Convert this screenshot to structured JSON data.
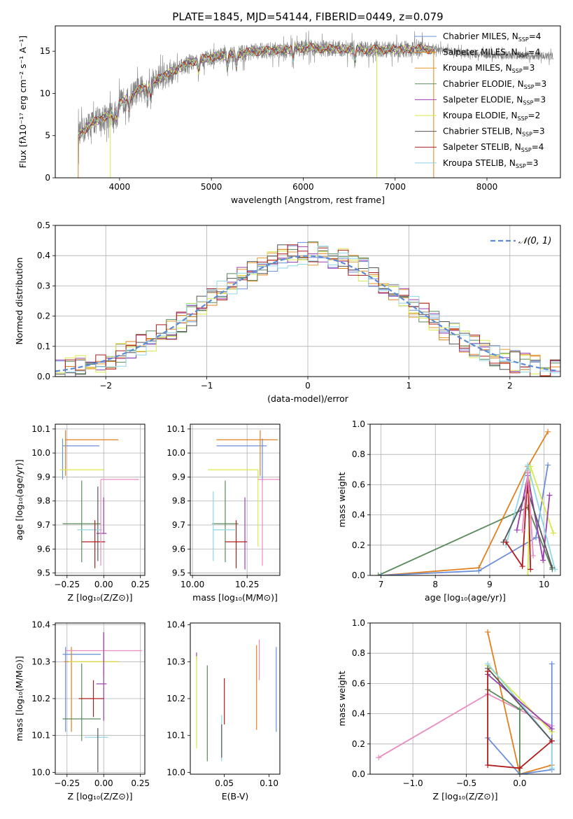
{
  "title": "PLATE=1845, MJD=54144, FIBERID=0449, z=0.079",
  "colors": {
    "Chabrier MILES": "#6a8fd8",
    "Salpeter MILES": "#e0801e",
    "Kroupa MILES": "#df9a2b",
    "Chabrier ELODIE": "#5a8a5a",
    "Salpeter ELODIE": "#9a3fae",
    "Kroupa ELODIE": "#d8e84a",
    "Chabrier STELIB": "#555555",
    "Salpeter STELIB": "#b01c1c",
    "Kroupa STELIB": "#8ed6e8",
    "extra_pink": "#e98cc0",
    "data_grey": "#808080",
    "normal_curve": "#5b8bd8"
  },
  "chart_data": [
    {
      "id": "spectrum",
      "type": "line",
      "xlabel": "wavelength [Angstrom, rest frame]",
      "ylabel": "Flux [fλ10⁻¹⁷ erg cm⁻² s⁻¹ A⁻¹]",
      "xlim": [
        3300,
        8800
      ],
      "ylim": [
        0,
        18
      ],
      "xticks": [
        4000,
        5000,
        6000,
        7000,
        8000
      ],
      "yticks": [
        0,
        5,
        10,
        15
      ],
      "grid": false,
      "legend_position": "right",
      "legend": [
        {
          "name": "Chabrier MILES",
          "nssp": "4"
        },
        {
          "name": "Salpeter MILES",
          "nssp": "4"
        },
        {
          "name": "Kroupa MILES",
          "nssp": "3"
        },
        {
          "name": "Chabrier ELODIE",
          "nssp": "3"
        },
        {
          "name": "Salpeter ELODIE",
          "nssp": "3"
        },
        {
          "name": "Kroupa ELODIE",
          "nssp": "2"
        },
        {
          "name": "Chabrier STELIB",
          "nssp": "3"
        },
        {
          "name": "Salpeter STELIB",
          "nssp": "4"
        },
        {
          "name": "Kroupa STELIB",
          "nssp": "3"
        }
      ],
      "continuum": [
        [
          3550,
          5.0
        ],
        [
          3700,
          6.5
        ],
        [
          3900,
          7.5
        ],
        [
          4000,
          8.8
        ],
        [
          4200,
          10.3
        ],
        [
          4500,
          12.2
        ],
        [
          4800,
          13.8
        ],
        [
          5000,
          14.3
        ],
        [
          5200,
          14.6
        ],
        [
          5500,
          15.0
        ],
        [
          5800,
          15.2
        ],
        [
          6000,
          15.4
        ],
        [
          6300,
          15.3
        ],
        [
          6600,
          15.2
        ],
        [
          7000,
          15.2
        ],
        [
          7300,
          15.3
        ],
        [
          7600,
          15.0
        ],
        [
          7800,
          14.7
        ],
        [
          8000,
          14.6
        ],
        [
          8400,
          14.5
        ],
        [
          8700,
          14.4
        ]
      ]
    },
    {
      "id": "residuals",
      "type": "bar",
      "xlabel": "(data-model)/error",
      "ylabel": "Normed distribution",
      "xlim": [
        -2.5,
        2.5
      ],
      "ylim": [
        0,
        0.5
      ],
      "xticks": [
        -2,
        -1,
        0,
        1,
        2
      ],
      "yticks": [
        0.0,
        0.1,
        0.2,
        0.3,
        0.4,
        0.5
      ],
      "grid": true,
      "legend": "𝒩(0, 1)",
      "legend_position": "top-right",
      "bin_width": 0.1,
      "bin_start": -2.5
    },
    {
      "id": "age_vs_Z",
      "type": "scatter",
      "xlabel": "Z [log₁₀(Z/Z⊙)]",
      "ylabel": "age  [log₁₀(age/yr)]",
      "xlim": [
        -0.33,
        0.28
      ],
      "ylim": [
        9.49,
        10.12
      ],
      "xticks": [
        -0.25,
        0.0,
        0.25
      ],
      "yticks": [
        9.5,
        9.6,
        9.7,
        9.8,
        9.9,
        10.0,
        10.1
      ],
      "grid": true,
      "errorbars": [
        {
          "model": "Chabrier MILES",
          "x": -0.28,
          "xerr": [
            0.0,
            0.25
          ],
          "y": 10.03,
          "yerr": [
            0.14,
            0.03
          ]
        },
        {
          "model": "Salpeter MILES",
          "x": -0.26,
          "xerr": [
            0.0,
            0.36
          ],
          "y": 10.055,
          "yerr": [
            0.15,
            0.04
          ]
        },
        {
          "model": "Kroupa ELODIE",
          "x": -0.3,
          "xerr": [
            0.0,
            0.3
          ],
          "y": 9.93,
          "yerr": [
            0.0,
            0.0
          ]
        },
        {
          "model": "Salpeter ELODIE",
          "x": 0.0,
          "xerr": [
            0.05,
            0.02
          ],
          "y": 9.665,
          "yerr": [
            0.0,
            0.15
          ]
        },
        {
          "model": "Chabrier ELODIE",
          "x": -0.15,
          "xerr": [
            0.13,
            0.13
          ],
          "y": 9.705,
          "yerr": [
            0.16,
            0.18
          ]
        },
        {
          "model": "Chabrier STELIB",
          "x": -0.04,
          "xerr": [
            0.0,
            0.0
          ],
          "y": 9.7,
          "yerr": [
            0.15,
            0.16
          ]
        },
        {
          "model": "Kroupa STELIB",
          "x": -0.1,
          "xerr": [
            0.08,
            0.09
          ],
          "y": 9.68,
          "yerr": [
            0.0,
            0.0
          ]
        },
        {
          "model": "Salpeter STELIB",
          "x": -0.06,
          "xerr": [
            0.09,
            0.07
          ],
          "y": 9.63,
          "yerr": [
            0.11,
            0.09
          ]
        },
        {
          "model": "extra_pink",
          "x": -0.02,
          "xerr": [
            0.0,
            0.26
          ],
          "y": 9.89,
          "yerr": [
            0.36,
            0.0
          ]
        }
      ]
    },
    {
      "id": "age_vs_mass",
      "type": "scatter",
      "xlabel": "mass [log₁₀(M/M⊙)]",
      "ylabel": "",
      "xlim": [
        9.99,
        10.4
      ],
      "ylim": [
        9.49,
        10.12
      ],
      "xticks": [
        10.0,
        10.25
      ],
      "yticks": [
        9.5,
        9.6,
        9.7,
        9.8,
        9.9,
        10.0,
        10.1
      ],
      "grid": true,
      "errorbars": [
        {
          "model": "Chabrier MILES",
          "x": 10.32,
          "xerr": [
            0.21,
            0.02
          ],
          "y": 10.03,
          "yerr": [
            0.15,
            0.03
          ]
        },
        {
          "model": "Salpeter MILES",
          "x": 10.31,
          "xerr": [
            0.2,
            0.08
          ],
          "y": 10.055,
          "yerr": [
            0.15,
            0.04
          ]
        },
        {
          "model": "Kroupa ELODIE",
          "x": 10.3,
          "xerr": [
            0.23,
            0.0
          ],
          "y": 9.93,
          "yerr": [
            0.32,
            0.0
          ]
        },
        {
          "model": "extra_pink",
          "x": 10.32,
          "xerr": [
            0.02,
            0.08
          ],
          "y": 9.89,
          "yerr": [
            0.36,
            0.0
          ]
        },
        {
          "model": "Chabrier ELODIE",
          "x": 10.15,
          "xerr": [
            0.06,
            0.06
          ],
          "y": 9.705,
          "yerr": [
            0.16,
            0.18
          ]
        },
        {
          "model": "Salpeter ELODIE",
          "x": 10.24,
          "xerr": [
            0.0,
            0.0
          ],
          "y": 9.665,
          "yerr": [
            0.15,
            0.15
          ]
        },
        {
          "model": "Kroupa STELIB",
          "x": 10.095,
          "xerr": [
            0.0,
            0.1
          ],
          "y": 9.68,
          "yerr": [
            0.13,
            0.16
          ]
        },
        {
          "model": "Salpeter STELIB",
          "x": 10.2,
          "xerr": [
            0.05,
            0.05
          ],
          "y": 9.63,
          "yerr": [
            0.11,
            0.09
          ]
        }
      ]
    },
    {
      "id": "massweight_vs_age",
      "type": "line",
      "xlabel": "age  [log₁₀(age/yr)]",
      "ylabel": "mass weight",
      "xlim": [
        6.8,
        10.3
      ],
      "ylim": [
        0.0,
        1.0
      ],
      "xticks": [
        7,
        8,
        9,
        10
      ],
      "yticks": [
        0.0,
        0.2,
        0.4,
        0.6,
        0.8,
        1.0
      ],
      "grid": true,
      "series": [
        {
          "model": "Chabrier ELODIE",
          "x": [
            6.95,
            9.7,
            10.15
          ],
          "y": [
            0.0,
            0.45,
            0.04
          ]
        },
        {
          "model": "Salpeter MILES",
          "x": [
            7.0,
            8.8,
            9.7,
            10.07
          ],
          "y": [
            0.0,
            0.05,
            0.72,
            0.95
          ]
        },
        {
          "model": "Chabrier MILES",
          "x": [
            7.0,
            8.8,
            9.85,
            10.07
          ],
          "y": [
            0.0,
            0.03,
            0.25,
            0.73
          ]
        },
        {
          "model": "Kroupa ELODIE",
          "x": [
            9.7,
            9.75,
            10.17
          ],
          "y": [
            0.0,
            0.72,
            0.28
          ]
        },
        {
          "model": "Salpeter ELODIE",
          "x": [
            9.5,
            9.7,
            9.98,
            10.1
          ],
          "y": [
            0.3,
            0.66,
            0.1,
            0.53
          ]
        },
        {
          "model": "Kroupa STELIB",
          "x": [
            9.3,
            9.7,
            10.2
          ],
          "y": [
            0.2,
            0.73,
            0.04
          ]
        },
        {
          "model": "Chabrier STELIB",
          "x": [
            9.25,
            9.7,
            10.15
          ],
          "y": [
            0.22,
            0.56,
            0.05
          ]
        },
        {
          "model": "Salpeter STELIB",
          "x": [
            9.3,
            9.6,
            9.7,
            9.75
          ],
          "y": [
            0.22,
            0.06,
            0.68,
            0.04
          ]
        },
        {
          "model": "extra_pink",
          "x": [
            9.6,
            9.7,
            9.8
          ],
          "y": [
            0.3,
            0.68,
            0.13
          ]
        }
      ]
    },
    {
      "id": "mass_vs_Z",
      "type": "scatter",
      "xlabel": "Z [log₁₀(Z/Z⊙)]",
      "ylabel": "mass [log₁₀(M/M⊙)]",
      "xlim": [
        -0.33,
        0.28
      ],
      "ylim": [
        9.995,
        10.405
      ],
      "xticks": [
        -0.25,
        0.0,
        0.25
      ],
      "yticks": [
        10.0,
        10.1,
        10.2,
        10.3,
        10.4
      ],
      "grid": true,
      "errorbars": [
        {
          "model": "Chabrier MILES",
          "x": -0.26,
          "xerr": [
            0.02,
            0.24
          ],
          "y": 10.32,
          "yerr": [
            0.21,
            0.02
          ]
        },
        {
          "model": "Salpeter MILES",
          "x": -0.22,
          "xerr": [
            0.05,
            0.32
          ],
          "y": 10.3,
          "yerr": [
            0.19,
            0.04
          ]
        },
        {
          "model": "Kroupa ELODIE",
          "x": -0.2,
          "xerr": [
            0.04,
            0.3
          ],
          "y": 10.3,
          "yerr": [
            0.0,
            0.0
          ]
        },
        {
          "model": "extra_pink",
          "x": 0.0,
          "xerr": [
            0.26,
            0.26
          ],
          "y": 10.33,
          "yerr": [
            0.07,
            0.05
          ]
        },
        {
          "model": "Salpeter ELODIE",
          "x": 0.0,
          "xerr": [
            0.05,
            0.02
          ],
          "y": 10.24,
          "yerr": [
            0.1,
            0.14
          ]
        },
        {
          "model": "Chabrier ELODIE",
          "x": -0.15,
          "xerr": [
            0.13,
            0.13
          ],
          "y": 10.145,
          "yerr": [
            0.06,
            0.15
          ]
        },
        {
          "model": "Salpeter STELIB",
          "x": -0.07,
          "xerr": [
            0.1,
            0.07
          ],
          "y": 10.2,
          "yerr": [
            0.05,
            0.05
          ]
        },
        {
          "model": "Kroupa STELIB",
          "x": -0.05,
          "xerr": [
            0.08,
            0.08
          ],
          "y": 10.095,
          "yerr": [
            0.0,
            0.0
          ]
        },
        {
          "model": "Chabrier STELIB",
          "x": -0.04,
          "xerr": [
            0.0,
            0.0
          ],
          "y": 10.12,
          "yerr": [
            0.12,
            0.0
          ]
        }
      ]
    },
    {
      "id": "mass_vs_EBV",
      "type": "scatter",
      "xlabel": "E(B-V)",
      "ylabel": "",
      "xlim": [
        0.012,
        0.112
      ],
      "ylim": [
        9.995,
        10.405
      ],
      "xticks": [
        0.05,
        0.1
      ],
      "yticks": [
        10.0,
        10.1,
        10.2,
        10.3,
        10.4
      ],
      "grid": false,
      "errorbars": [
        {
          "model": "Salpeter ELODIE",
          "x": 0.019,
          "yrange": [
            10.305,
            10.325
          ]
        },
        {
          "model": "Kroupa ELODIE",
          "x": 0.019,
          "yrange": [
            10.065,
            10.315
          ]
        },
        {
          "model": "Chabrier ELODIE",
          "x": 0.031,
          "yrange": [
            10.03,
            10.29
          ]
        },
        {
          "model": "Kroupa STELIB",
          "x": 0.047,
          "yrange": [
            10.03,
            10.155
          ]
        },
        {
          "model": "Chabrier STELIB",
          "x": 0.047,
          "yrange": [
            10.04,
            10.13
          ]
        },
        {
          "model": "Salpeter STELIB",
          "x": 0.05,
          "yrange": [
            10.13,
            10.255
          ]
        },
        {
          "model": "Salpeter MILES",
          "x": 0.086,
          "yrange": [
            10.115,
            10.345
          ]
        },
        {
          "model": "extra_pink",
          "x": 0.089,
          "yrange": [
            10.25,
            10.36
          ]
        },
        {
          "model": "Chabrier MILES",
          "x": 0.108,
          "yrange": [
            10.11,
            10.34
          ]
        }
      ]
    },
    {
      "id": "massweight_vs_Z",
      "type": "line",
      "xlabel": "Z [log₁₀(Z/Z⊙)]",
      "ylabel": "mass weight",
      "xlim": [
        -1.4,
        0.38
      ],
      "ylim": [
        0.0,
        1.0
      ],
      "xticks": [
        -1.0,
        -0.5,
        0.0
      ],
      "yticks": [
        0.0,
        0.2,
        0.4,
        0.6,
        0.8,
        1.0
      ],
      "grid": true,
      "series": [
        {
          "model": "extra_pink",
          "x": [
            -1.32,
            -0.3,
            0.3
          ],
          "y": [
            0.11,
            0.53,
            0.32
          ]
        },
        {
          "model": "Salpeter MILES",
          "x": [
            -0.3,
            0.0,
            0.3
          ],
          "y": [
            0.94,
            0.0,
            0.06
          ]
        },
        {
          "model": "Chabrier MILES",
          "x": [
            -0.3,
            0.0,
            0.3,
            0.3
          ],
          "y": [
            0.24,
            0.0,
            0.03,
            0.73
          ]
        },
        {
          "model": "Kroupa ELODIE",
          "x": [
            -0.3,
            0.3
          ],
          "y": [
            0.72,
            0.28
          ]
        },
        {
          "model": "Kroupa STELIB",
          "x": [
            -0.3,
            0.3,
            0.3
          ],
          "y": [
            0.73,
            0.22,
            0.04
          ]
        },
        {
          "model": "Chabrier ELODIE",
          "x": [
            -0.3,
            0.0,
            0.0
          ],
          "y": [
            0.56,
            0.43,
            0.0
          ]
        },
        {
          "model": "Salpeter ELODIE",
          "x": [
            -0.3,
            0.3
          ],
          "y": [
            0.66,
            0.3
          ]
        },
        {
          "model": "Chabrier STELIB",
          "x": [
            -0.3,
            0.3
          ],
          "y": [
            0.7,
            0.22
          ]
        },
        {
          "model": "Salpeter STELIB",
          "x": [
            -0.3,
            -0.3,
            0.0,
            0.3
          ],
          "y": [
            0.68,
            0.06,
            0.04,
            0.22
          ]
        }
      ]
    }
  ]
}
